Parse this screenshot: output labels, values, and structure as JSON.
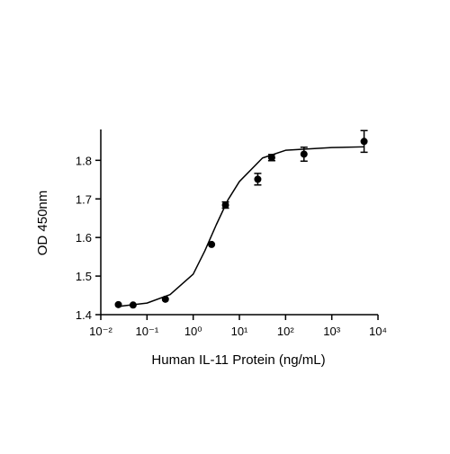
{
  "chart_data": {
    "type": "scatter",
    "x_label": "Human IL-11 Protein (ng/mL)",
    "y_label": "OD 450nm",
    "xscale": "log",
    "xlim": [
      0.01,
      10000
    ],
    "ylim": [
      1.4,
      1.88
    ],
    "xticks": [
      {
        "value": 0.01,
        "label": "10⁻²"
      },
      {
        "value": 0.1,
        "label": "10⁻¹"
      },
      {
        "value": 1,
        "label": "10⁰"
      },
      {
        "value": 10,
        "label": "10¹"
      },
      {
        "value": 100,
        "label": "10²"
      },
      {
        "value": 1000,
        "label": "10³"
      },
      {
        "value": 10000,
        "label": "10⁴"
      }
    ],
    "yticks": [
      1.4,
      1.5,
      1.6,
      1.7,
      1.8
    ],
    "series": [
      {
        "kind": "points",
        "color": "#000000",
        "x": [
          0.024,
          0.05,
          0.25,
          2.5,
          5,
          25,
          50,
          250,
          5000
        ],
        "values": [
          1.426,
          1.425,
          1.44,
          1.582,
          1.684,
          1.751,
          1.807,
          1.816,
          1.849
        ],
        "errors": [
          null,
          null,
          null,
          null,
          0.008,
          0.015,
          0.008,
          0.018,
          0.028
        ]
      },
      {
        "kind": "curve",
        "color": "#000000",
        "x": [
          0.024,
          0.0316,
          0.1,
          0.316,
          1,
          1.78,
          3.16,
          5.62,
          10,
          31.6,
          100,
          1000,
          5000
        ],
        "values": [
          1.421,
          1.423,
          1.43,
          1.452,
          1.505,
          1.565,
          1.633,
          1.697,
          1.745,
          1.806,
          1.826,
          1.833,
          1.835
        ]
      }
    ]
  }
}
